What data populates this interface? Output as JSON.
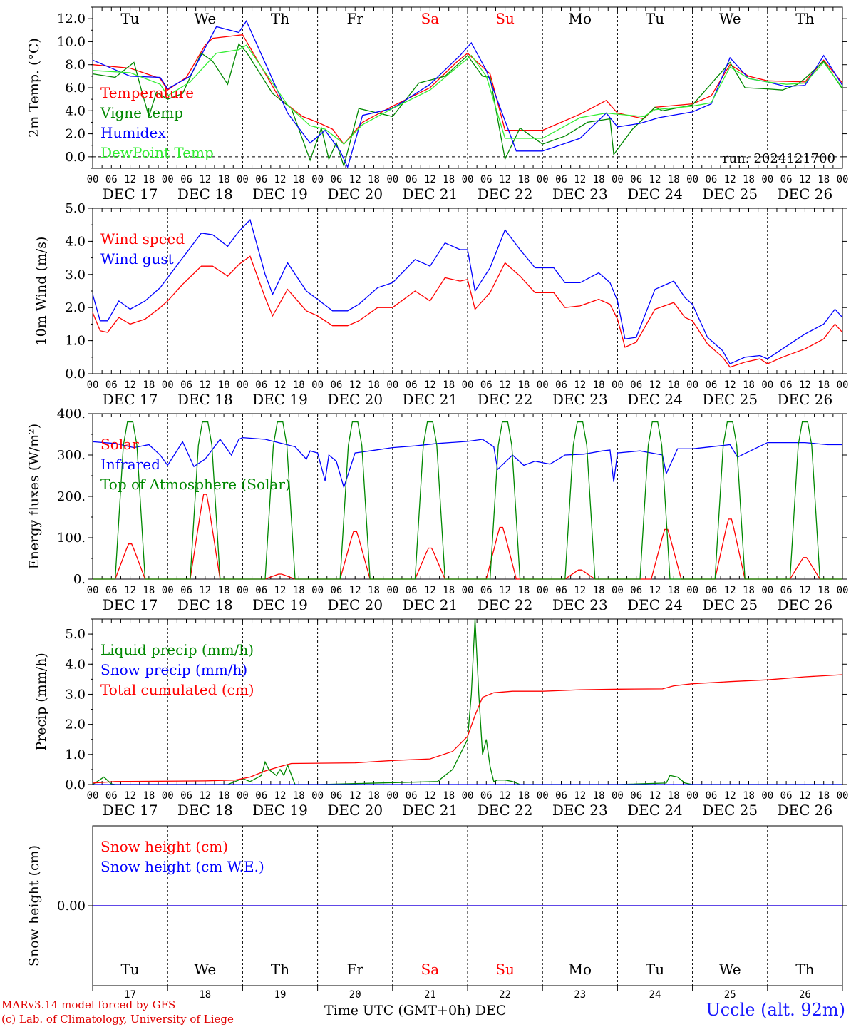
{
  "days": [
    "Tu",
    "We",
    "Th",
    "Fr",
    "Sa",
    "Su",
    "Mo",
    "Tu",
    "We",
    "Th"
  ],
  "weekend_days": [
    4,
    5
  ],
  "dates": [
    "DEC 17",
    "DEC 18",
    "DEC 19",
    "DEC 20",
    "DEC 21",
    "DEC 22",
    "DEC 23",
    "DEC 24",
    "DEC 25",
    "DEC 26"
  ],
  "day_numbers": [
    "17",
    "18",
    "19",
    "20",
    "21",
    "22",
    "23",
    "24",
    "25",
    "26"
  ],
  "hour_labels": [
    "00",
    "06",
    "12",
    "18"
  ],
  "last_hour_label": "00",
  "run_label": "run: 2024121700",
  "colors": {
    "red": "#ff0000",
    "green": "#008800",
    "blue": "#0000ff",
    "lightgreen": "#33ee33",
    "weekend": "#ff0000"
  },
  "footer": {
    "model": "MARv3.14 model forced by GFS",
    "lab": "(c) Lab. of Climatology, University of Liege",
    "xlabel": "Time UTC (GMT+0h) DEC",
    "station": "Uccle (alt. 92m)"
  },
  "chart_data": [
    {
      "type": "line",
      "ylabel": "2m Temp. (°C)",
      "ylim": [
        -1,
        13
      ],
      "ticks": [
        0,
        2,
        4,
        6,
        8,
        10,
        12
      ],
      "tick_labels": [
        "0.0",
        "2.0",
        "4.0",
        "6.0",
        "8.0",
        "10.0",
        "12.0"
      ],
      "x_unit": "days since Dec 17 00 UTC",
      "grid": false,
      "series": [
        {
          "name": "Temperature",
          "color": "red",
          "x": [
            0,
            0.5,
            0.9,
            1.0,
            1.25,
            1.5,
            1.6,
            2.0,
            2.5,
            2.8,
            3.0,
            3.2,
            3.35,
            3.6,
            4.0,
            4.5,
            4.85,
            5.0,
            5.3,
            5.5,
            6.0,
            6.5,
            6.85,
            7.0,
            7.35,
            7.5,
            8.0,
            8.25,
            8.5,
            8.75,
            9.0,
            9.5,
            9.75,
            10.0
          ],
          "y": [
            8.0,
            7.7,
            6.8,
            5.8,
            6.9,
            9.7,
            10.3,
            10.6,
            5.0,
            3.5,
            3.0,
            2.4,
            1.1,
            3.0,
            4.4,
            6.0,
            8.2,
            9.0,
            7.2,
            2.3,
            2.3,
            3.7,
            4.9,
            3.8,
            3.3,
            4.3,
            4.6,
            5.3,
            8.0,
            7.0,
            6.6,
            6.5,
            8.4,
            6.4
          ]
        },
        {
          "name": "Vigne temp",
          "color": "green",
          "x": [
            0,
            0.3,
            0.55,
            0.65,
            0.75,
            0.85,
            1.0,
            1.2,
            1.45,
            1.6,
            1.8,
            1.95,
            2.05,
            2.4,
            2.65,
            2.9,
            3.05,
            3.15,
            3.25,
            3.35,
            3.55,
            4.0,
            4.35,
            4.7,
            5.0,
            5.2,
            5.3,
            5.5,
            5.7,
            6.0,
            6.3,
            6.6,
            6.9,
            6.95,
            7.2,
            7.5,
            7.6,
            8.0,
            8.5,
            8.7,
            9.0,
            9.2,
            9.4,
            9.5,
            9.75,
            10.0
          ],
          "y": [
            7.2,
            6.9,
            8.2,
            5.8,
            3.5,
            5.6,
            5.0,
            5.5,
            9.0,
            8.3,
            6.3,
            9.8,
            9.1,
            5.5,
            4.2,
            -0.3,
            2.5,
            -0.2,
            1.2,
            -0.8,
            4.2,
            3.5,
            6.4,
            7.0,
            8.8,
            7.0,
            6.9,
            -0.2,
            2.5,
            1.1,
            1.8,
            3.0,
            3.3,
            0.2,
            2.4,
            4.3,
            4.0,
            4.5,
            8.2,
            6.0,
            5.9,
            5.8,
            6.3,
            6.8,
            8.3,
            5.9
          ]
        },
        {
          "name": "Humidex",
          "color": "blue",
          "x": [
            0,
            0.5,
            0.9,
            1.0,
            1.3,
            1.65,
            1.95,
            2.05,
            2.6,
            2.9,
            3.1,
            3.3,
            3.4,
            3.6,
            4.0,
            4.5,
            4.9,
            5.05,
            5.25,
            5.65,
            6.0,
            6.5,
            6.85,
            7.0,
            7.3,
            7.55,
            8.0,
            8.25,
            8.5,
            8.75,
            9.0,
            9.25,
            9.5,
            9.75,
            10.0
          ],
          "y": [
            8.4,
            7.0,
            6.9,
            5.9,
            7.0,
            11.3,
            10.8,
            11.8,
            3.8,
            1.2,
            2.3,
            0.5,
            -0.9,
            3.6,
            4.2,
            6.3,
            8.8,
            9.9,
            7.5,
            0.5,
            0.5,
            1.6,
            3.8,
            2.6,
            2.9,
            3.4,
            3.9,
            4.6,
            8.6,
            6.8,
            6.5,
            6.1,
            6.2,
            8.8,
            6.2
          ]
        },
        {
          "name": "DewPoint Temp",
          "color": "lightgreen",
          "x": [
            0,
            0.5,
            0.9,
            1.0,
            1.3,
            1.65,
            1.95,
            2.05,
            2.6,
            2.9,
            3.1,
            3.3,
            3.35,
            3.6,
            4.0,
            4.5,
            4.9,
            5.05,
            5.25,
            5.5,
            6.0,
            6.5,
            6.85,
            7.0,
            7.35,
            7.5,
            8.0,
            8.25,
            8.5,
            8.75,
            9.0,
            9.25,
            9.5,
            9.75,
            10.0
          ],
          "y": [
            7.5,
            7.3,
            6.3,
            5.3,
            6.5,
            9.0,
            9.3,
            9.7,
            4.5,
            2.7,
            2.4,
            1.4,
            1.1,
            2.8,
            4.2,
            5.8,
            8.0,
            8.8,
            7.0,
            1.6,
            1.6,
            3.4,
            3.8,
            3.7,
            3.5,
            4.1,
            4.4,
            4.7,
            7.8,
            6.8,
            6.5,
            6.3,
            6.4,
            8.2,
            6.0
          ]
        }
      ],
      "annotation": "run: 2024121700",
      "zero_line": "dashed"
    },
    {
      "type": "line",
      "ylabel": "10m Wind (m/s)",
      "ylim": [
        0,
        5
      ],
      "ticks": [
        0,
        1,
        2,
        3,
        4,
        5
      ],
      "tick_labels": [
        "0.0",
        "1.0",
        "2.0",
        "3.0",
        "4.0",
        "5.0"
      ],
      "x_unit": "days since Dec 17 00 UTC",
      "grid": false,
      "series": [
        {
          "name": "Wind speed",
          "color": "red",
          "x": [
            0,
            0.1,
            0.2,
            0.35,
            0.5,
            0.7,
            0.9,
            1.0,
            1.2,
            1.45,
            1.6,
            1.8,
            1.95,
            2.1,
            2.3,
            2.4,
            2.6,
            2.85,
            3.0,
            3.2,
            3.4,
            3.55,
            3.8,
            4.0,
            4.3,
            4.5,
            4.7,
            4.9,
            5.0,
            5.1,
            5.3,
            5.5,
            5.7,
            5.9,
            6.15,
            6.3,
            6.5,
            6.75,
            6.9,
            7.0,
            7.1,
            7.25,
            7.5,
            7.75,
            7.9,
            8.0,
            8.2,
            8.4,
            8.5,
            8.7,
            8.9,
            9.0,
            9.2,
            9.5,
            9.75,
            9.9,
            10.0
          ],
          "y": [
            1.85,
            1.3,
            1.25,
            1.7,
            1.5,
            1.65,
            2.0,
            2.2,
            2.7,
            3.25,
            3.25,
            2.95,
            3.3,
            3.55,
            2.3,
            1.75,
            2.55,
            1.9,
            1.75,
            1.45,
            1.45,
            1.6,
            2.0,
            2.0,
            2.5,
            2.2,
            2.9,
            2.8,
            2.85,
            1.95,
            2.45,
            3.35,
            2.95,
            2.45,
            2.45,
            2.0,
            2.05,
            2.25,
            2.1,
            1.65,
            0.8,
            0.95,
            1.95,
            2.15,
            1.7,
            1.6,
            0.9,
            0.5,
            0.2,
            0.35,
            0.45,
            0.3,
            0.5,
            0.75,
            1.05,
            1.5,
            1.25
          ]
        },
        {
          "name": "Wind gust",
          "color": "blue",
          "x": [
            0,
            0.1,
            0.2,
            0.35,
            0.5,
            0.7,
            0.9,
            1.0,
            1.2,
            1.45,
            1.6,
            1.8,
            1.95,
            2.1,
            2.3,
            2.4,
            2.6,
            2.85,
            3.0,
            3.2,
            3.4,
            3.55,
            3.8,
            4.0,
            4.3,
            4.5,
            4.7,
            4.9,
            5.0,
            5.1,
            5.3,
            5.5,
            5.7,
            5.9,
            6.15,
            6.3,
            6.5,
            6.75,
            6.9,
            7.0,
            7.1,
            7.25,
            7.5,
            7.75,
            7.9,
            8.0,
            8.2,
            8.4,
            8.5,
            8.7,
            8.9,
            9.0,
            9.2,
            9.5,
            9.75,
            9.9,
            10.0
          ],
          "y": [
            2.4,
            1.6,
            1.6,
            2.2,
            1.95,
            2.2,
            2.6,
            2.9,
            3.5,
            4.25,
            4.2,
            3.85,
            4.3,
            4.65,
            3.0,
            2.4,
            3.35,
            2.5,
            2.25,
            1.9,
            1.9,
            2.1,
            2.6,
            2.75,
            3.45,
            3.25,
            3.95,
            3.75,
            3.75,
            2.5,
            3.2,
            4.35,
            3.75,
            3.2,
            3.2,
            2.75,
            2.75,
            3.05,
            2.75,
            2.2,
            1.05,
            1.1,
            2.55,
            2.8,
            2.3,
            2.1,
            1.1,
            0.7,
            0.3,
            0.5,
            0.55,
            0.45,
            0.75,
            1.2,
            1.5,
            1.95,
            1.7
          ]
        }
      ]
    },
    {
      "type": "line",
      "ylabel": "Energy fluxes (W/m²)",
      "ylim": [
        0,
        400
      ],
      "ticks": [
        0,
        100,
        200,
        300,
        400
      ],
      "tick_labels": [
        "0.",
        "100.",
        "200.",
        "300.",
        "400."
      ],
      "x_unit": "days since Dec 17 00 UTC",
      "grid": false,
      "series": [
        {
          "name": "Solar",
          "color": "red",
          "peaks": [
            [
              0.5,
              85
            ],
            [
              1.5,
              205
            ],
            [
              2.5,
              12
            ],
            [
              3.5,
              115
            ],
            [
              4.5,
              75
            ],
            [
              5.45,
              125
            ],
            [
              6.5,
              22
            ],
            [
              7.65,
              120
            ],
            [
              8.5,
              145
            ],
            [
              9.5,
              52
            ]
          ]
        },
        {
          "name": "Infrared",
          "color": "blue",
          "x": [
            0,
            0.3,
            0.55,
            0.75,
            0.9,
            1.0,
            1.2,
            1.35,
            1.5,
            1.7,
            1.85,
            1.95,
            2.0,
            2.3,
            2.7,
            2.85,
            2.9,
            3.0,
            3.1,
            3.15,
            3.25,
            3.35,
            3.5,
            3.7,
            4.0,
            4.3,
            4.6,
            5.0,
            5.2,
            5.35,
            5.4,
            5.6,
            5.75,
            5.9,
            6.1,
            6.3,
            6.55,
            6.8,
            6.9,
            6.95,
            7.0,
            7.3,
            7.6,
            7.65,
            7.8,
            8.0,
            8.5,
            8.6,
            9.0,
            9.5,
            9.8,
            10.0
          ],
          "y": [
            332,
            328,
            318,
            325,
            300,
            275,
            332,
            272,
            290,
            338,
            300,
            338,
            342,
            338,
            320,
            290,
            310,
            305,
            238,
            300,
            285,
            222,
            305,
            310,
            318,
            322,
            328,
            333,
            338,
            320,
            265,
            300,
            275,
            285,
            278,
            300,
            302,
            310,
            312,
            235,
            305,
            310,
            300,
            255,
            315,
            315,
            325,
            295,
            330,
            330,
            325,
            325
          ]
        },
        {
          "name": "Top of Atmosphere (Solar)",
          "color": "green",
          "peaks": [
            [
              0.5,
              380
            ],
            [
              1.5,
              380
            ],
            [
              2.5,
              380
            ],
            [
              3.5,
              380
            ],
            [
              4.5,
              380
            ],
            [
              5.5,
              380
            ],
            [
              6.5,
              380
            ],
            [
              7.5,
              380
            ],
            [
              8.5,
              380
            ],
            [
              9.5,
              380
            ]
          ]
        }
      ]
    },
    {
      "type": "line",
      "ylabel": "Precip (mm/h)",
      "ylim": [
        0,
        5.5
      ],
      "ticks": [
        0,
        1,
        2,
        3,
        4,
        5
      ],
      "tick_labels": [
        "0.0",
        "1.0",
        "2.0",
        "3.0",
        "4.0",
        "5.0"
      ],
      "x_unit": "days since Dec 17 00 UTC",
      "grid": false,
      "series": [
        {
          "name": "Liquid precip (mm/h)",
          "color": "green",
          "x": [
            0,
            0.15,
            0.25,
            0.3,
            1.8,
            1.9,
            2.0,
            2.1,
            2.25,
            2.3,
            2.35,
            2.45,
            2.5,
            2.55,
            2.6,
            2.7,
            3.0,
            4.6,
            4.7,
            4.8,
            4.9,
            5.0,
            5.05,
            5.1,
            5.15,
            5.2,
            5.25,
            5.3,
            5.35,
            5.4,
            5.5,
            5.6,
            5.7,
            7.0,
            7.65,
            7.7,
            7.8,
            7.9,
            8.0,
            10.0
          ],
          "y": [
            0,
            0.25,
            0.02,
            0,
            0,
            0.1,
            0.2,
            0.1,
            0.3,
            0.75,
            0.5,
            0.3,
            0.5,
            0.3,
            0.65,
            0,
            0,
            0.1,
            0.3,
            0.5,
            1.0,
            1.5,
            3.0,
            5.5,
            3.0,
            1.0,
            1.5,
            0.6,
            0.1,
            0.15,
            0.15,
            0.1,
            0,
            0,
            0.05,
            0.3,
            0.25,
            0.05,
            0,
            0
          ]
        },
        {
          "name": "Snow precip (mm/h)",
          "color": "blue",
          "x": [
            0,
            10
          ],
          "y": [
            0,
            0
          ]
        },
        {
          "name": "Total cumulated (cm)",
          "color": "red",
          "x": [
            0,
            0.3,
            1.5,
            1.9,
            2.1,
            2.3,
            2.5,
            2.65,
            3.5,
            4.0,
            4.5,
            4.8,
            5.0,
            5.1,
            5.2,
            5.35,
            5.6,
            6.0,
            6.5,
            7.0,
            7.6,
            7.75,
            8.0,
            8.5,
            9.0,
            9.5,
            10.0
          ],
          "y": [
            0.05,
            0.1,
            0.12,
            0.15,
            0.25,
            0.45,
            0.6,
            0.7,
            0.72,
            0.8,
            0.85,
            1.1,
            1.6,
            2.3,
            2.9,
            3.05,
            3.1,
            3.1,
            3.15,
            3.17,
            3.18,
            3.28,
            3.35,
            3.42,
            3.48,
            3.58,
            3.65
          ]
        }
      ]
    },
    {
      "type": "line",
      "ylabel": "Snow height (cm)",
      "ylim": [
        -1,
        1
      ],
      "ticks": [
        0
      ],
      "tick_labels": [
        "0.00"
      ],
      "x_unit": "days since Dec 17 00 UTC",
      "grid": false,
      "series": [
        {
          "name": "Snow height (cm)",
          "color": "red",
          "x": [
            0,
            10
          ],
          "y": [
            0,
            0
          ]
        },
        {
          "name": "Snow height (cm W.E.)",
          "color": "blue",
          "x": [
            0,
            10
          ],
          "y": [
            0,
            0
          ]
        }
      ]
    }
  ]
}
